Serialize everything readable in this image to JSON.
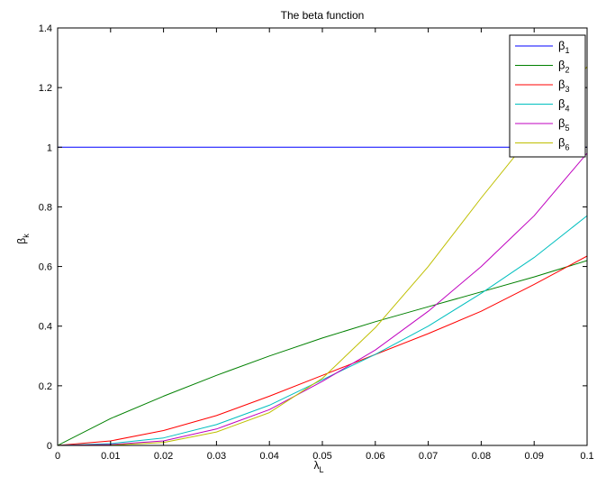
{
  "chart_data": {
    "type": "line",
    "title": "The beta function",
    "xlabel": "λ",
    "xlabel_sub": "L",
    "ylabel": "β",
    "ylabel_sub": "k",
    "xlim": [
      0,
      0.1
    ],
    "ylim": [
      0,
      1.4
    ],
    "xticks": [
      0,
      0.01,
      0.02,
      0.03,
      0.04,
      0.05,
      0.06,
      0.07,
      0.08,
      0.09,
      0.1
    ],
    "xtick_labels": [
      "0",
      "0.01",
      "0.02",
      "0.03",
      "0.04",
      "0.05",
      "0.06",
      "0.07",
      "0.08",
      "0.09",
      "0.1"
    ],
    "yticks": [
      0,
      0.2,
      0.4,
      0.6,
      0.8,
      1,
      1.2,
      1.4
    ],
    "ytick_labels": [
      "0",
      "0.2",
      "0.4",
      "0.6",
      "0.8",
      "1",
      "1.2",
      "1.4"
    ],
    "grid": false,
    "legend_position": "top-right",
    "x": [
      0,
      0.01,
      0.02,
      0.03,
      0.04,
      0.05,
      0.06,
      0.07,
      0.08,
      0.09,
      0.1
    ],
    "series": [
      {
        "name": "β",
        "sub": "1",
        "color": "#0000ff",
        "values": [
          1,
          1,
          1,
          1,
          1,
          1,
          1,
          1,
          1,
          1,
          1
        ]
      },
      {
        "name": "β",
        "sub": "2",
        "color": "#008000",
        "values": [
          0,
          0.09,
          0.165,
          0.235,
          0.3,
          0.36,
          0.415,
          0.465,
          0.515,
          0.565,
          0.62
        ]
      },
      {
        "name": "β",
        "sub": "3",
        "color": "#ff0000",
        "values": [
          0,
          0.015,
          0.05,
          0.1,
          0.165,
          0.235,
          0.305,
          0.375,
          0.45,
          0.54,
          0.635
        ]
      },
      {
        "name": "β",
        "sub": "4",
        "color": "#00bfbf",
        "values": [
          0,
          0.006,
          0.025,
          0.07,
          0.135,
          0.22,
          0.305,
          0.4,
          0.51,
          0.63,
          0.77
        ]
      },
      {
        "name": "β",
        "sub": "5",
        "color": "#bf00bf",
        "values": [
          0,
          0.003,
          0.015,
          0.055,
          0.12,
          0.215,
          0.32,
          0.45,
          0.6,
          0.77,
          0.98
        ]
      },
      {
        "name": "β",
        "sub": "6",
        "color": "#bfbf00",
        "values": [
          0,
          0.001,
          0.01,
          0.045,
          0.11,
          0.225,
          0.395,
          0.6,
          0.83,
          1.05,
          1.27
        ]
      }
    ]
  }
}
